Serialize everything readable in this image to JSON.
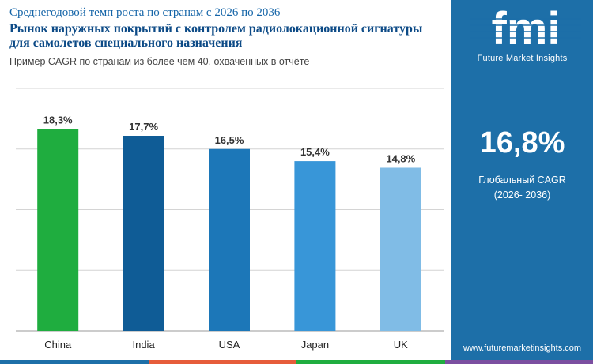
{
  "header": {
    "kicker": "Среднегодовой темп роста по странам с 2026 по 2036",
    "title": "Рынок наружных покрытий с контролем радиолокационной сигнатуры для самолетов специального назначения",
    "subtitle": "Пример CAGR по странам из более чем 40, охваченных в отчёте"
  },
  "chart_data": {
    "type": "bar",
    "categories": [
      "China",
      "India",
      "USA",
      "Japan",
      "UK"
    ],
    "values": [
      18.3,
      17.7,
      16.5,
      15.4,
      14.8
    ],
    "value_labels": [
      "18,3%",
      "17,7%",
      "16,5%",
      "15,4%",
      "14,8%"
    ],
    "bar_colors": [
      "#1fad3f",
      "#0f5c96",
      "#1c77b8",
      "#3896d8",
      "#80bce6"
    ],
    "ylim": [
      0,
      22
    ],
    "grid": true,
    "title": "",
    "xlabel": "",
    "ylabel": ""
  },
  "sidebar": {
    "logo_text": "fmi",
    "logo_subtitle": "Future Market Insights",
    "cagr_value": "16,8%",
    "cagr_label_line1": "Глобальный CAGR",
    "cagr_label_line2": "(2026- 2036)",
    "website": "www.futuremarketinsights.com",
    "background_color": "#1d6fa8"
  },
  "footer": {
    "strip_colors": [
      "#1d6fa8",
      "#e65c3a",
      "#1fad3f",
      "#7b4fa0"
    ]
  }
}
